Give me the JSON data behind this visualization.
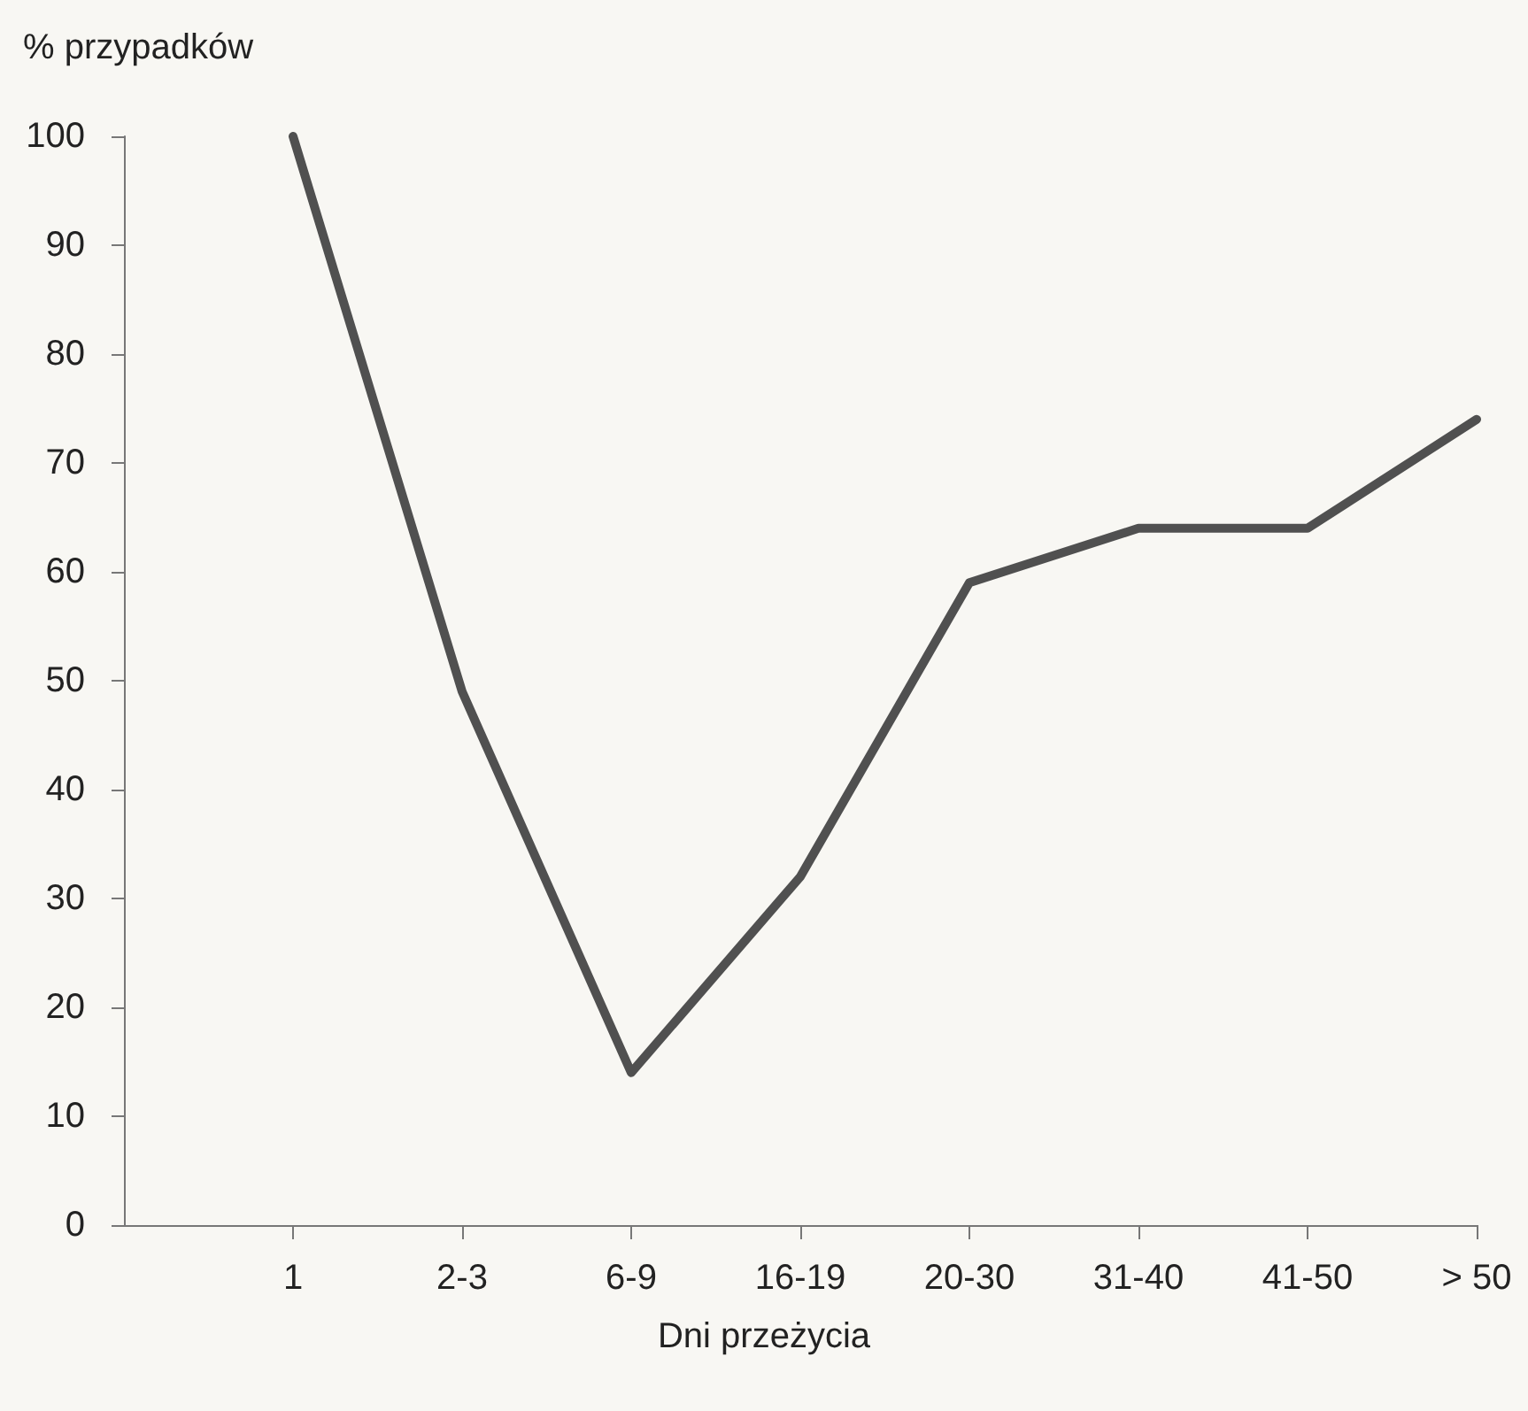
{
  "chart_data": {
    "type": "line",
    "xlabel": "Dni przeżycia",
    "ylabel": "% przypadków",
    "categories": [
      "1",
      "2-3",
      "6-9",
      "16-19",
      "20-30",
      "31-40",
      "41-50",
      "> 50"
    ],
    "series": [
      {
        "color": "#505050",
        "values": [
          100,
          49,
          14,
          32,
          59,
          64,
          64,
          74
        ]
      }
    ],
    "ylim": [
      0,
      100
    ],
    "yticks": [
      0,
      10,
      20,
      30,
      40,
      50,
      60,
      70,
      80,
      90,
      100
    ],
    "grid": false,
    "marker": "none",
    "line_style": "solid"
  }
}
